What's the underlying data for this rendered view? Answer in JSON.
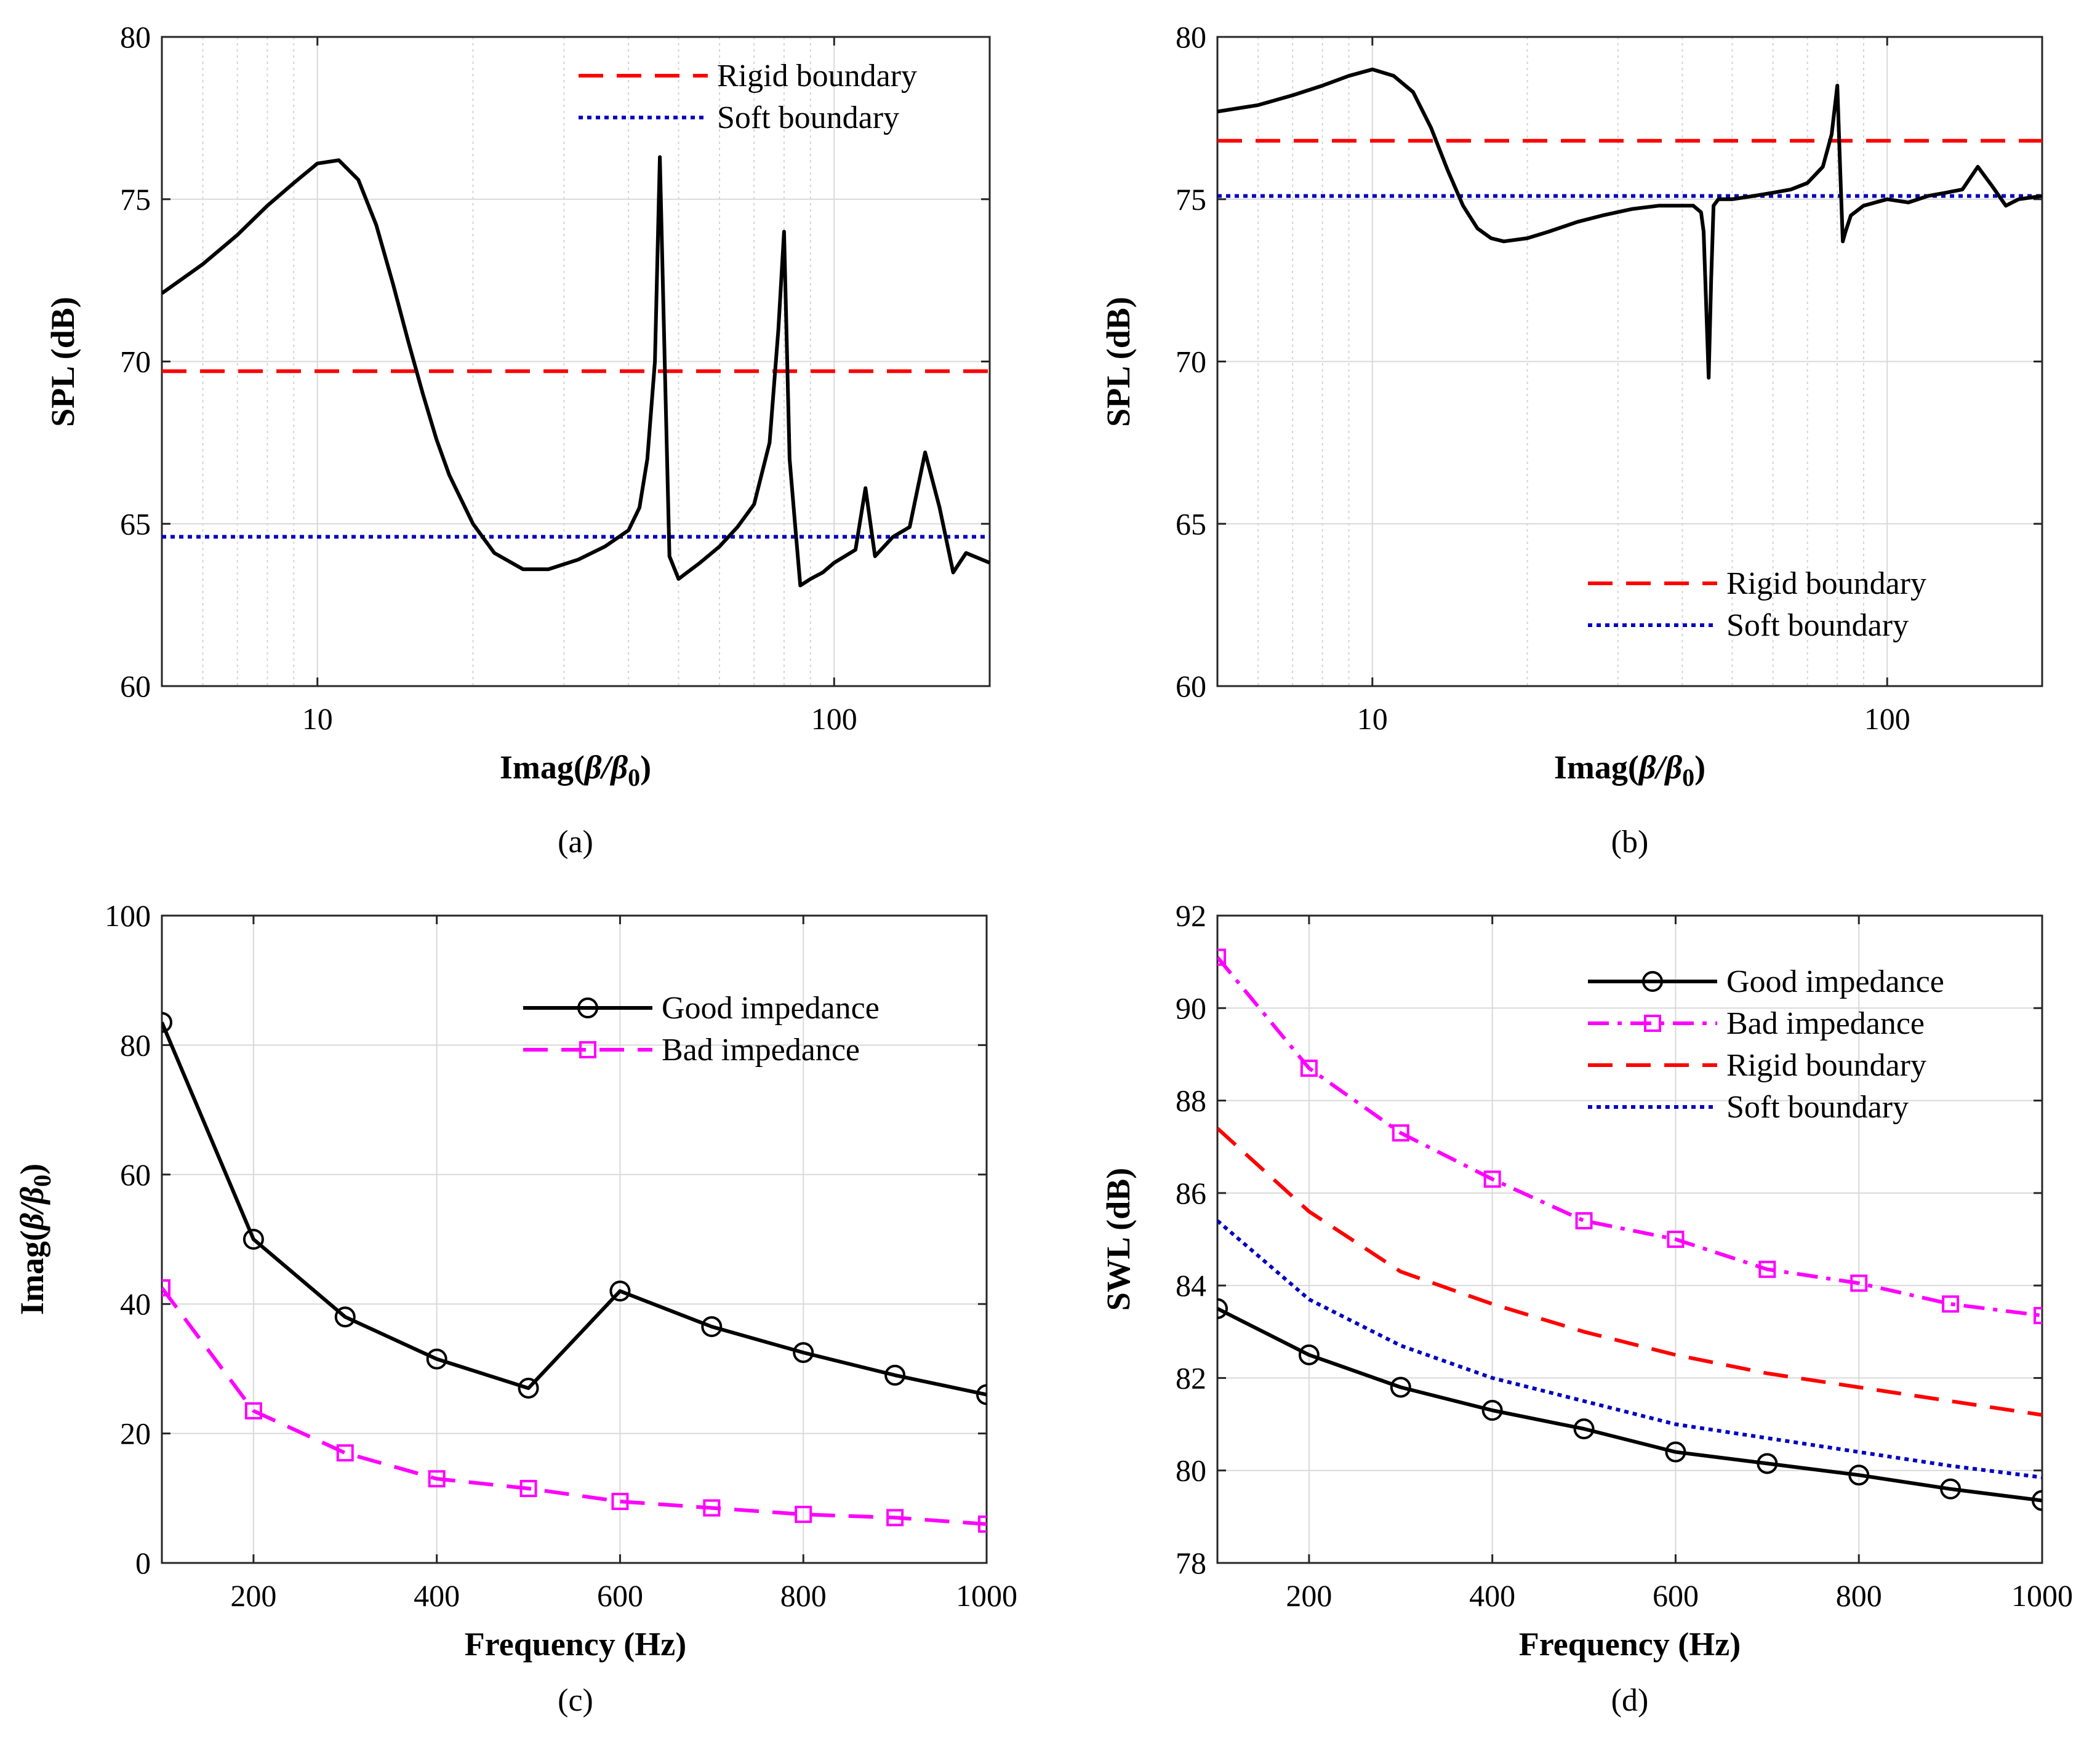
{
  "chart_data": [
    {
      "id": "a",
      "caption": "(a)",
      "type": "line",
      "xscale": "log",
      "xlabel": "Imag(β/β0)",
      "ylabel": "SPL (dB)",
      "xlim": [
        5,
        200
      ],
      "ylim": [
        60,
        80
      ],
      "xticks": [
        10,
        100
      ],
      "xtick_labels": [
        "10",
        "100"
      ],
      "yticks": [
        60,
        65,
        70,
        75,
        80
      ],
      "ytick_labels": [
        "60",
        "65",
        "70",
        "75",
        "80"
      ],
      "grid": true,
      "legend_position": "top-right",
      "series": [
        {
          "name": "Rigid boundary",
          "style": "dashed",
          "color": "#ff0000",
          "in_legend": true,
          "x": [
            5,
            200
          ],
          "y": [
            69.7,
            69.7
          ]
        },
        {
          "name": "Soft boundary",
          "style": "dotted",
          "color": "#0000c0",
          "in_legend": true,
          "x": [
            5,
            200
          ],
          "y": [
            64.6,
            64.6
          ]
        },
        {
          "name": "SPL",
          "style": "solid",
          "color": "#000000",
          "in_legend": false,
          "x": [
            5,
            6,
            7,
            8,
            9,
            10,
            11,
            12,
            13,
            14,
            15,
            16,
            17,
            18,
            20,
            22,
            25,
            28,
            32,
            36,
            40,
            42,
            43.5,
            45,
            46,
            47,
            48,
            50,
            55,
            60,
            65,
            70,
            75,
            78,
            80,
            82,
            84,
            86,
            88,
            90,
            95,
            100,
            110,
            115,
            120,
            130,
            140,
            150,
            160,
            170,
            180,
            200
          ],
          "y": [
            72.1,
            73.0,
            73.9,
            74.8,
            75.5,
            76.1,
            76.2,
            75.6,
            74.2,
            72.4,
            70.6,
            69.0,
            67.6,
            66.5,
            65.0,
            64.1,
            63.6,
            63.6,
            63.9,
            64.3,
            64.8,
            65.5,
            67.0,
            70.0,
            76.3,
            70.0,
            64.0,
            63.3,
            63.8,
            64.3,
            64.9,
            65.6,
            67.5,
            71.0,
            74.0,
            67.0,
            65.0,
            63.1,
            63.2,
            63.3,
            63.5,
            63.8,
            64.2,
            66.1,
            64.0,
            64.6,
            64.9,
            67.2,
            65.5,
            63.5,
            64.1,
            63.8
          ]
        }
      ]
    },
    {
      "id": "b",
      "caption": "(b)",
      "type": "line",
      "xscale": "log",
      "xlabel": "Imag(β/β0)",
      "ylabel": "SPL (dB)",
      "xlim": [
        5,
        200
      ],
      "ylim": [
        60,
        80
      ],
      "xticks": [
        10,
        100
      ],
      "xtick_labels": [
        "10",
        "100"
      ],
      "yticks": [
        60,
        65,
        70,
        75,
        80
      ],
      "ytick_labels": [
        "60",
        "65",
        "70",
        "75",
        "80"
      ],
      "grid": true,
      "legend_position": "bottom-right",
      "series": [
        {
          "name": "Rigid boundary",
          "style": "dashed",
          "color": "#ff0000",
          "in_legend": true,
          "x": [
            5,
            200
          ],
          "y": [
            76.8,
            76.8
          ]
        },
        {
          "name": "Soft boundary",
          "style": "dotted",
          "color": "#0000c0",
          "in_legend": true,
          "x": [
            5,
            200
          ],
          "y": [
            75.1,
            75.1
          ]
        },
        {
          "name": "SPL",
          "style": "solid",
          "color": "#000000",
          "in_legend": false,
          "x": [
            5,
            6,
            7,
            8,
            9,
            10,
            11,
            12,
            13,
            14,
            15,
            16,
            17,
            18,
            20,
            22,
            25,
            28,
            32,
            36,
            40,
            42,
            43.5,
            44,
            45,
            45.5,
            46,
            47,
            50,
            55,
            60,
            65,
            70,
            75,
            78,
            80,
            81,
            82,
            83,
            85,
            90,
            100,
            110,
            120,
            130,
            140,
            150,
            160,
            170,
            180,
            200
          ],
          "y": [
            77.7,
            77.9,
            78.2,
            78.5,
            78.8,
            79.0,
            78.8,
            78.3,
            77.2,
            75.9,
            74.8,
            74.1,
            73.8,
            73.7,
            73.8,
            74.0,
            74.3,
            74.5,
            74.7,
            74.8,
            74.8,
            74.8,
            74.6,
            74.0,
            69.5,
            72.5,
            74.8,
            75.0,
            75.0,
            75.1,
            75.2,
            75.3,
            75.5,
            76.0,
            77.0,
            78.5,
            76.0,
            73.7,
            74.0,
            74.5,
            74.8,
            75.0,
            74.9,
            75.1,
            75.2,
            75.3,
            76.0,
            75.4,
            74.8,
            75.0,
            75.1
          ]
        }
      ]
    },
    {
      "id": "c",
      "caption": "(c)",
      "type": "line",
      "xscale": "linear",
      "xlabel": "Frequency (Hz)",
      "ylabel": "Imag(β/β0)",
      "xlim": [
        100,
        1000
      ],
      "ylim": [
        0,
        100
      ],
      "xticks": [
        200,
        400,
        600,
        800,
        1000
      ],
      "xtick_labels": [
        "200",
        "400",
        "600",
        "800",
        "1000"
      ],
      "yticks": [
        0,
        20,
        40,
        60,
        80,
        100
      ],
      "ytick_labels": [
        "0",
        "20",
        "40",
        "60",
        "80",
        "100"
      ],
      "grid": true,
      "legend_position": "top-right",
      "series": [
        {
          "name": "Good impedance",
          "style": "solid",
          "marker": "circle",
          "color": "#000000",
          "in_legend": true,
          "x": [
            100,
            200,
            300,
            400,
            500,
            600,
            700,
            800,
            900,
            1000
          ],
          "y": [
            83.5,
            50.0,
            38.0,
            31.5,
            27.0,
            42.0,
            36.5,
            32.5,
            29.0,
            26.0
          ]
        },
        {
          "name": "Bad impedance",
          "style": "dashed",
          "marker": "square",
          "color": "#ff00ff",
          "in_legend": true,
          "x": [
            100,
            200,
            300,
            400,
            500,
            600,
            700,
            800,
            900,
            1000
          ],
          "y": [
            42.5,
            23.5,
            17.0,
            13.0,
            11.5,
            9.5,
            8.5,
            7.5,
            7.0,
            6.0
          ]
        }
      ]
    },
    {
      "id": "d",
      "caption": "(d)",
      "type": "line",
      "xscale": "linear",
      "xlabel": "Frequency (Hz)",
      "ylabel": "SWL (dB)",
      "xlim": [
        100,
        1000
      ],
      "ylim": [
        78,
        92
      ],
      "xticks": [
        200,
        400,
        600,
        800,
        1000
      ],
      "xtick_labels": [
        "200",
        "400",
        "600",
        "800",
        "1000"
      ],
      "yticks": [
        78,
        80,
        82,
        84,
        86,
        88,
        90,
        92
      ],
      "ytick_labels": [
        "78",
        "80",
        "82",
        "84",
        "86",
        "88",
        "90",
        "92"
      ],
      "grid": true,
      "legend_position": "top-right",
      "series": [
        {
          "name": "Good impedance",
          "style": "solid",
          "marker": "circle",
          "color": "#000000",
          "in_legend": true,
          "x": [
            100,
            200,
            300,
            400,
            500,
            600,
            700,
            800,
            900,
            1000
          ],
          "y": [
            83.5,
            82.5,
            81.8,
            81.3,
            80.9,
            80.4,
            80.15,
            79.9,
            79.6,
            79.35
          ]
        },
        {
          "name": "Bad impedance",
          "style": "dashdot",
          "marker": "square",
          "color": "#ff00ff",
          "in_legend": true,
          "x": [
            100,
            200,
            300,
            400,
            500,
            600,
            700,
            800,
            900,
            1000
          ],
          "y": [
            91.1,
            88.7,
            87.3,
            86.3,
            85.4,
            85.0,
            84.35,
            84.05,
            83.6,
            83.35
          ]
        },
        {
          "name": "Rigid boundary",
          "style": "dashed",
          "color": "#ff0000",
          "in_legend": true,
          "x": [
            100,
            200,
            300,
            400,
            500,
            600,
            700,
            800,
            900,
            1000
          ],
          "y": [
            87.4,
            85.6,
            84.3,
            83.6,
            83.0,
            82.5,
            82.1,
            81.8,
            81.5,
            81.2
          ]
        },
        {
          "name": "Soft boundary",
          "style": "dotted",
          "color": "#0000c0",
          "in_legend": true,
          "x": [
            100,
            200,
            300,
            400,
            500,
            600,
            700,
            800,
            900,
            1000
          ],
          "y": [
            85.4,
            83.7,
            82.7,
            82.0,
            81.5,
            81.0,
            80.7,
            80.4,
            80.1,
            79.85
          ]
        }
      ]
    }
  ]
}
